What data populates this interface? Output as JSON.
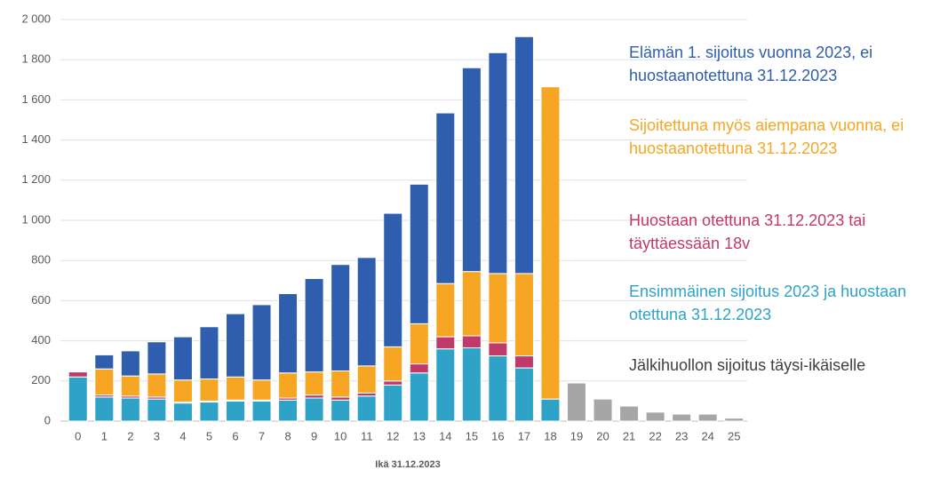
{
  "chart_data": {
    "type": "stacked-bar",
    "x_label": "Ikä 31.12.2023",
    "categories": [
      "0",
      "1",
      "2",
      "3",
      "4",
      "5",
      "6",
      "7",
      "8",
      "9",
      "10",
      "11",
      "12",
      "13",
      "14",
      "15",
      "16",
      "17",
      "18",
      "19",
      "20",
      "21",
      "22",
      "23",
      "24",
      "25"
    ],
    "series": [
      {
        "name": "Ensimmäinen sijoitus 2023 ja huostaan otettuna 31.12.2023",
        "color": "#2ea3c7",
        "values": [
          220,
          120,
          115,
          110,
          90,
          95,
          100,
          100,
          105,
          115,
          105,
          125,
          180,
          240,
          360,
          365,
          325,
          265,
          110,
          0,
          0,
          0,
          0,
          0,
          0,
          0
        ]
      },
      {
        "name": "Huostaan otettuna 31.12.2023 tai täyttäessään 18v",
        "color": "#c0396b",
        "values": [
          25,
          10,
          10,
          10,
          5,
          5,
          5,
          5,
          10,
          15,
          15,
          15,
          20,
          45,
          60,
          60,
          65,
          60,
          0,
          0,
          0,
          0,
          0,
          0,
          0,
          0
        ]
      },
      {
        "name": "Sijoitettuna myös aiempana vuonna, ei huostaanotettuna 31.12.2023",
        "color": "#f6a623",
        "values": [
          0,
          130,
          100,
          115,
          110,
          110,
          115,
          100,
          125,
          115,
          130,
          135,
          170,
          200,
          265,
          320,
          345,
          410,
          1555,
          0,
          0,
          0,
          0,
          0,
          0,
          0
        ]
      },
      {
        "name": "Elämän 1. sijoitus vuonna 2023, ei huostaanotettuna 31.12.2023",
        "color": "#2f5eae",
        "values": [
          0,
          70,
          125,
          160,
          215,
          260,
          315,
          375,
          395,
          465,
          530,
          540,
          665,
          695,
          850,
          1015,
          1100,
          1180,
          0,
          0,
          0,
          0,
          0,
          0,
          0,
          0
        ]
      },
      {
        "name": "Jälkihuollon sijoitus täysi-ikäiselle",
        "color": "#a6a6a6",
        "values": [
          0,
          0,
          0,
          0,
          0,
          0,
          0,
          0,
          0,
          0,
          0,
          0,
          0,
          0,
          0,
          0,
          0,
          0,
          0,
          190,
          110,
          75,
          45,
          35,
          35,
          15
        ]
      }
    ],
    "ylim": [
      0,
      2000
    ],
    "yticks": [
      0,
      200,
      400,
      600,
      800,
      {
        "value": 1000,
        "label": "1 000"
      },
      {
        "value": 1200,
        "label": "1 200"
      },
      {
        "value": 1400,
        "label": "1 400"
      },
      {
        "value": 1600,
        "label": "1 600"
      },
      {
        "value": 1800,
        "label": "1 800"
      },
      {
        "value": 2000,
        "label": "2 000"
      }
    ],
    "grid": true
  }
}
